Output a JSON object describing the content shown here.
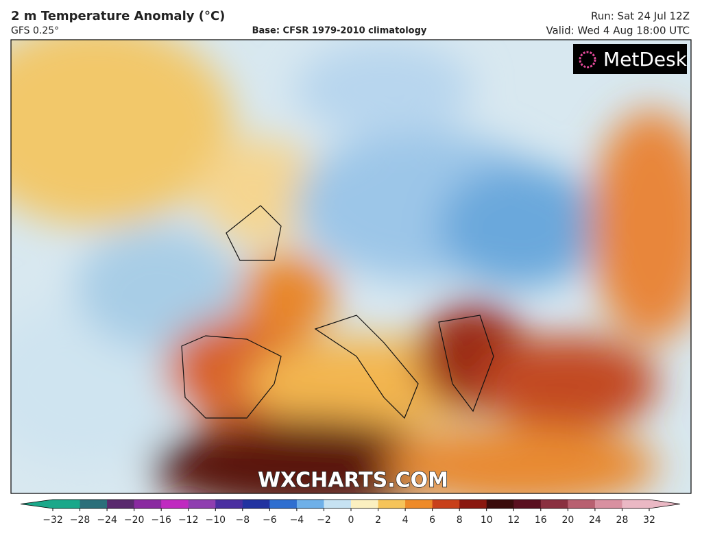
{
  "header": {
    "title": "2 m Temperature Anomaly (°C)",
    "model": "GFS 0.25°",
    "base": "Base: CFSR 1979-2010 climatology",
    "run": "Run: Sat 24 Jul 12Z",
    "valid": "Valid: Wed 4 Aug 18:00 UTC"
  },
  "logo": "MetDesk",
  "watermark": "WXCHARTS.COM",
  "colorbar": {
    "ticks": [
      {
        "value": -32,
        "label": "−32"
      },
      {
        "value": -28,
        "label": "−28"
      },
      {
        "value": -24,
        "label": "−24"
      },
      {
        "value": -20,
        "label": "−20"
      },
      {
        "value": -16,
        "label": "−16"
      },
      {
        "value": -12,
        "label": "−12"
      },
      {
        "value": -10,
        "label": "−10"
      },
      {
        "value": -8,
        "label": "−8"
      },
      {
        "value": -6,
        "label": "−6"
      },
      {
        "value": -4,
        "label": "−4"
      },
      {
        "value": -2,
        "label": "−2"
      },
      0,
      2,
      4,
      6,
      8,
      10,
      12,
      16,
      20,
      24,
      28,
      32
    ],
    "colors": [
      "#1aa88a",
      "#2b6f7a",
      "#5a2a6e",
      "#8a2aa0",
      "#c02ac0",
      "#8f3fb0",
      "#4a2fa0",
      "#2233a0",
      "#2f6fd0",
      "#6fb0e8",
      "#c6e2f2",
      "#fbf0c0",
      "#f6c45a",
      "#ee8a28",
      "#c8401a",
      "#8a1810",
      "#3a0c0c",
      "#5a1020",
      "#8a3040",
      "#b86070",
      "#d890a0",
      "#eab8c4"
    ]
  }
}
